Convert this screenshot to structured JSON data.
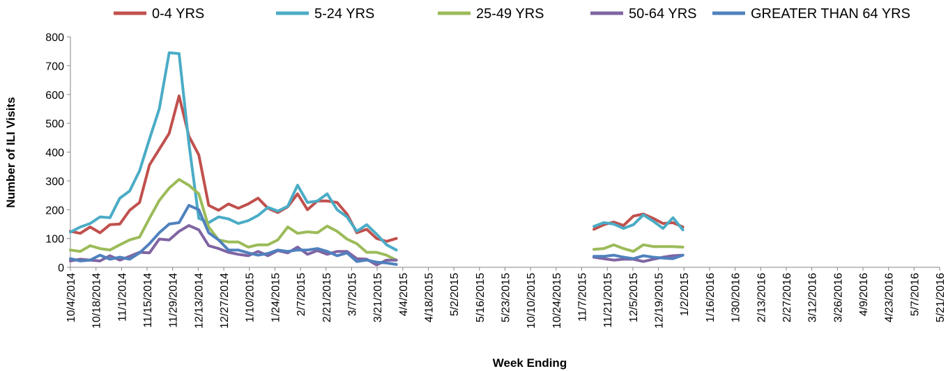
{
  "chart_data": {
    "type": "line",
    "title": "",
    "xlabel": "Week Ending",
    "ylabel": "Number of ILI Visits",
    "ylim": [
      0,
      800
    ],
    "yticks": [
      0,
      100,
      200,
      300,
      400,
      500,
      600,
      700,
      800
    ],
    "grid": false,
    "legend_position": "top",
    "x_tick_labels": [
      "10/4/2014",
      "10/18/2014",
      "11/1/2014",
      "11/15/2014",
      "11/29/2014",
      "12/13/2014",
      "12/27/2014",
      "1/10/2015",
      "1/24/2015",
      "2/7/2015",
      "2/21/2015",
      "3/7/2015",
      "3/21/2015",
      "4/4/2015",
      "4/18/2015",
      "5/2/2015",
      "5/16/2015",
      "5/23/2015",
      "10/10/2015",
      "10/24/2015",
      "11/7/2015",
      "11/21/2015",
      "12/5/2015",
      "12/19/2015",
      "1/2/2015",
      "1/16/2016",
      "1/30/2016",
      "2/13/2016",
      "2/27/2016",
      "3/12/2016",
      "3/26/2016",
      "4/9/2016",
      "4/23/2016",
      "5/7/2016",
      "5/21/2016"
    ],
    "series": [
      {
        "name": "0-4 YRS",
        "color": "#c0504d",
        "segments": [
          {
            "x": [
              "10/4/2014",
              "10/11/2014",
              "10/18/2014",
              "10/25/2014",
              "11/1/2014",
              "11/8/2014",
              "11/15/2014",
              "11/22/2014",
              "11/29/2014",
              "12/6/2014",
              "12/13/2014",
              "12/20/2014",
              "12/27/2014",
              "1/3/2015",
              "1/10/2015",
              "1/17/2015",
              "1/24/2015",
              "1/31/2015",
              "2/7/2015",
              "2/14/2015",
              "2/21/2015",
              "2/28/2015",
              "3/7/2015",
              "3/14/2015",
              "3/21/2015",
              "3/28/2015",
              "4/4/2015",
              "4/11/2015",
              "4/18/2015",
              "4/25/2015",
              "5/2/2015",
              "5/9/2015",
              "5/16/2015",
              "5/23/2015"
            ],
            "y": [
              125,
              118,
              140,
              120,
              148,
              150,
              198,
              225,
              355,
              410,
              465,
              595,
              455,
              390,
              215,
              198,
              220,
              205,
              220,
              240,
              205,
              190,
              210,
              255,
              200,
              230,
              230,
              225,
              185,
              120,
              132,
              100,
              90,
              100
            ]
          },
          {
            "x": [
              "10/10/2015",
              "10/17/2015",
              "10/24/2015",
              "10/31/2015",
              "11/7/2015",
              "11/14/2015",
              "11/21/2015",
              "11/28/2015",
              "12/5/2015",
              "12/12/2015"
            ],
            "y": [
              132,
              148,
              157,
              145,
              178,
              185,
              170,
              152,
              155,
              140
            ]
          }
        ]
      },
      {
        "name": "5-24 YRS",
        "color": "#4bacc6",
        "segments": [
          {
            "x": [
              "10/4/2014",
              "10/11/2014",
              "10/18/2014",
              "10/25/2014",
              "11/1/2014",
              "11/8/2014",
              "11/15/2014",
              "11/22/2014",
              "11/29/2014",
              "12/6/2014",
              "12/13/2014",
              "12/20/2014",
              "12/27/2014",
              "1/3/2015",
              "1/10/2015",
              "1/17/2015",
              "1/24/2015",
              "1/31/2015",
              "2/7/2015",
              "2/14/2015",
              "2/21/2015",
              "2/28/2015",
              "3/7/2015",
              "3/14/2015",
              "3/21/2015",
              "3/28/2015",
              "4/4/2015",
              "4/11/2015",
              "4/18/2015",
              "4/25/2015",
              "5/2/2015",
              "5/9/2015",
              "5/16/2015",
              "5/23/2015"
            ],
            "y": [
              122,
              140,
              152,
              175,
              172,
              240,
              265,
              335,
              445,
              550,
              745,
              742,
              430,
              170,
              155,
              175,
              168,
              152,
              162,
              180,
              208,
              195,
              212,
              285,
              225,
              230,
              255,
              200,
              175,
              125,
              148,
              115,
              78,
              60
            ]
          },
          {
            "x": [
              "10/10/2015",
              "10/17/2015",
              "10/24/2015",
              "10/31/2015",
              "11/7/2015",
              "11/14/2015",
              "11/21/2015",
              "11/28/2015",
              "12/5/2015",
              "12/12/2015"
            ],
            "y": [
              142,
              155,
              150,
              135,
              148,
              182,
              160,
              135,
              172,
              130
            ]
          }
        ]
      },
      {
        "name": "25-49 YRS",
        "color": "#9bbb59",
        "segments": [
          {
            "x": [
              "10/4/2014",
              "10/11/2014",
              "10/18/2014",
              "10/25/2014",
              "11/1/2014",
              "11/8/2014",
              "11/15/2014",
              "11/22/2014",
              "11/29/2014",
              "12/6/2014",
              "12/13/2014",
              "12/20/2014",
              "12/27/2014",
              "1/3/2015",
              "1/10/2015",
              "1/17/2015",
              "1/24/2015",
              "1/31/2015",
              "2/7/2015",
              "2/14/2015",
              "2/21/2015",
              "2/28/2015",
              "3/7/2015",
              "3/14/2015",
              "3/21/2015",
              "3/28/2015",
              "4/4/2015",
              "4/11/2015",
              "4/18/2015",
              "4/25/2015",
              "5/2/2015",
              "5/9/2015",
              "5/16/2015",
              "5/23/2015"
            ],
            "y": [
              60,
              55,
              75,
              65,
              60,
              78,
              95,
              105,
              170,
              232,
              275,
              305,
              285,
              255,
              140,
              95,
              88,
              88,
              70,
              78,
              78,
              95,
              140,
              118,
              123,
              120,
              143,
              125,
              98,
              82,
              52,
              52,
              42,
              25
            ]
          },
          {
            "x": [
              "10/10/2015",
              "10/17/2015",
              "10/24/2015",
              "10/31/2015",
              "11/7/2015",
              "11/14/2015",
              "11/21/2015",
              "11/28/2015",
              "12/5/2015",
              "12/12/2015"
            ],
            "y": [
              62,
              65,
              78,
              65,
              55,
              78,
              72,
              72,
              72,
              70
            ]
          }
        ]
      },
      {
        "name": "50-64 YRS",
        "color": "#8064a2",
        "segments": [
          {
            "x": [
              "10/4/2014",
              "10/11/2014",
              "10/18/2014",
              "10/25/2014",
              "11/1/2014",
              "11/8/2014",
              "11/15/2014",
              "11/22/2014",
              "11/29/2014",
              "12/6/2014",
              "12/13/2014",
              "12/20/2014",
              "12/27/2014",
              "1/3/2015",
              "1/10/2015",
              "1/17/2015",
              "1/24/2015",
              "1/31/2015",
              "2/7/2015",
              "2/14/2015",
              "2/21/2015",
              "2/28/2015",
              "3/7/2015",
              "3/14/2015",
              "3/21/2015",
              "3/28/2015",
              "4/4/2015",
              "4/11/2015",
              "4/18/2015",
              "4/25/2015",
              "5/2/2015",
              "5/9/2015",
              "5/16/2015",
              "5/23/2015"
            ],
            "y": [
              22,
              28,
              25,
              22,
              40,
              25,
              38,
              52,
              50,
              98,
              95,
              125,
              145,
              130,
              75,
              65,
              52,
              45,
              40,
              55,
              40,
              58,
              50,
              70,
              45,
              58,
              45,
              55,
              55,
              30,
              28,
              8,
              25,
              25
            ]
          },
          {
            "x": [
              "10/10/2015",
              "10/17/2015",
              "10/24/2015",
              "10/31/2015",
              "11/7/2015",
              "11/14/2015",
              "11/21/2015",
              "11/28/2015",
              "12/5/2015",
              "12/12/2015"
            ],
            "y": [
              35,
              30,
              25,
              28,
              28,
              20,
              28,
              35,
              40,
              42
            ]
          }
        ]
      },
      {
        "name": "GREATER THAN 64 YRS",
        "color": "#4f81bd",
        "segments": [
          {
            "x": [
              "10/4/2014",
              "10/11/2014",
              "10/18/2014",
              "10/25/2014",
              "11/1/2014",
              "11/8/2014",
              "11/15/2014",
              "11/22/2014",
              "11/29/2014",
              "12/6/2014",
              "12/13/2014",
              "12/20/2014",
              "12/27/2014",
              "1/3/2015",
              "1/10/2015",
              "1/17/2015",
              "1/24/2015",
              "1/31/2015",
              "2/7/2015",
              "2/14/2015",
              "2/21/2015",
              "2/28/2015",
              "3/7/2015",
              "3/14/2015",
              "3/21/2015",
              "3/28/2015",
              "4/4/2015",
              "4/11/2015",
              "4/18/2015",
              "4/25/2015",
              "5/2/2015",
              "5/9/2015",
              "5/16/2015",
              "5/23/2015"
            ],
            "y": [
              30,
              22,
              25,
              42,
              28,
              35,
              28,
              50,
              82,
              120,
              150,
              155,
              215,
              200,
              120,
              95,
              60,
              60,
              50,
              42,
              48,
              60,
              55,
              60,
              60,
              65,
              55,
              40,
              50,
              20,
              25,
              18,
              15,
              10
            ]
          },
          {
            "x": [
              "10/10/2015",
              "10/17/2015",
              "10/24/2015",
              "10/31/2015",
              "11/7/2015",
              "11/14/2015",
              "11/21/2015",
              "11/28/2015",
              "12/5/2015",
              "12/12/2015"
            ],
            "y": [
              38,
              38,
              42,
              35,
              30,
              40,
              35,
              32,
              30,
              42
            ]
          }
        ]
      }
    ]
  }
}
